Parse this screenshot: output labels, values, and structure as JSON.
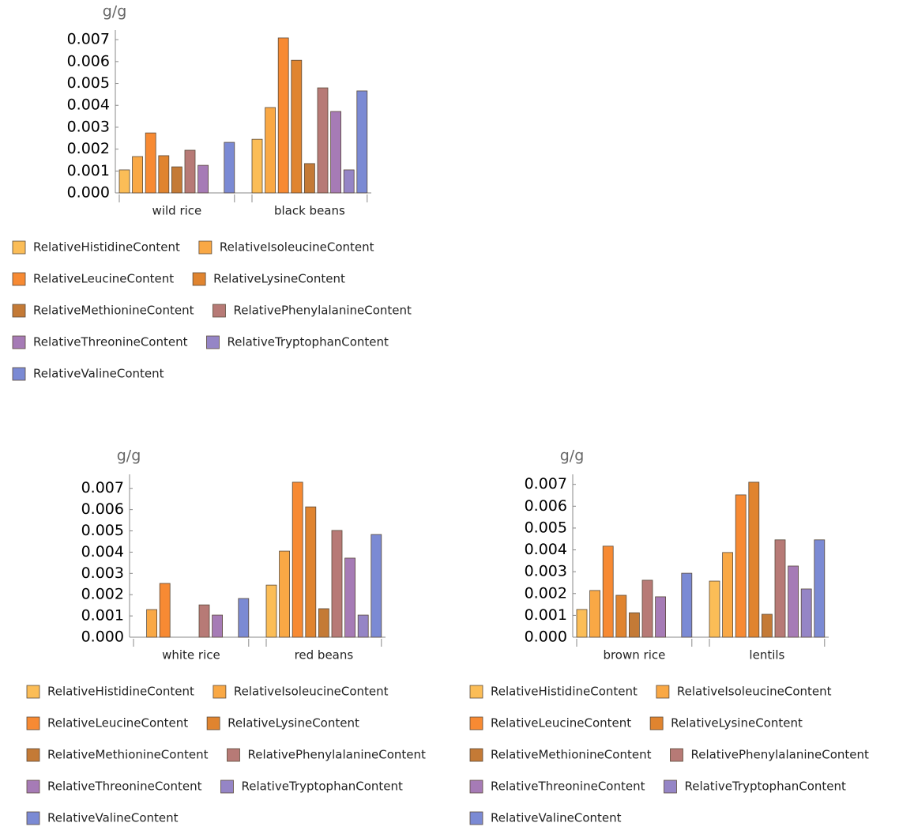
{
  "chart_data": [
    {
      "type": "bar",
      "ylabel": "g/g",
      "categories": [
        "wild rice",
        "black beans"
      ],
      "legend": "bottom",
      "ylim": [
        0,
        0.00744
      ],
      "yticks": [
        {
          "value": 0,
          "label": "0.000"
        },
        {
          "value": 0.001,
          "label": "0.001"
        },
        {
          "value": 0.002,
          "label": "0.002"
        },
        {
          "value": 0.003,
          "label": "0.003"
        },
        {
          "value": 0.004,
          "label": "0.004"
        },
        {
          "value": 0.005,
          "label": "0.005"
        },
        {
          "value": 0.006,
          "label": "0.006"
        },
        {
          "value": 0.007,
          "label": "0.007"
        }
      ],
      "series": [
        {
          "name": "RelativeHistidineContent",
          "color": "#fbbd57",
          "values": [
            0.00105,
            0.00245
          ]
        },
        {
          "name": "RelativeIsoleucineContent",
          "color": "#f9a845",
          "values": [
            0.00166,
            0.0039
          ]
        },
        {
          "name": "RelativeLeucineContent",
          "color": "#f78a33",
          "values": [
            0.00274,
            0.00708
          ]
        },
        {
          "name": "RelativeLysineContent",
          "color": "#e0842f",
          "values": [
            0.0017,
            0.00606
          ]
        },
        {
          "name": "RelativeMethionineContent",
          "color": "#c47a36",
          "values": [
            0.00119,
            0.00134
          ]
        },
        {
          "name": "RelativePhenylalanineContent",
          "color": "#b77a76",
          "values": [
            0.00195,
            0.0048
          ]
        },
        {
          "name": "RelativeThreonineContent",
          "color": "#a67bb6",
          "values": [
            0.00126,
            0.00372
          ]
        },
        {
          "name": "RelativeTryptophanContent",
          "color": "#9585c6",
          "values": [
            null,
            0.00105
          ]
        },
        {
          "name": "RelativeValineContent",
          "color": "#7b8ad4",
          "values": [
            0.00231,
            0.00466
          ]
        }
      ]
    },
    {
      "type": "bar",
      "ylabel": "g/g",
      "categories": [
        "white rice",
        "red beans"
      ],
      "legend": "bottom",
      "ylim": [
        0,
        0.00766
      ],
      "yticks": [
        {
          "value": 0,
          "label": "0.000"
        },
        {
          "value": 0.001,
          "label": "0.001"
        },
        {
          "value": 0.002,
          "label": "0.002"
        },
        {
          "value": 0.003,
          "label": "0.003"
        },
        {
          "value": 0.004,
          "label": "0.004"
        },
        {
          "value": 0.005,
          "label": "0.005"
        },
        {
          "value": 0.006,
          "label": "0.006"
        },
        {
          "value": 0.007,
          "label": "0.007"
        }
      ],
      "series": [
        {
          "name": "RelativeHistidineContent",
          "color": "#fbbd57",
          "values": [
            null,
            0.00245
          ]
        },
        {
          "name": "RelativeIsoleucineContent",
          "color": "#f9a845",
          "values": [
            0.0013,
            0.00405
          ]
        },
        {
          "name": "RelativeLeucineContent",
          "color": "#f78a33",
          "values": [
            0.00253,
            0.00729
          ]
        },
        {
          "name": "RelativeLysineContent",
          "color": "#e0842f",
          "values": [
            null,
            0.00613
          ]
        },
        {
          "name": "RelativeMethionineContent",
          "color": "#c47a36",
          "values": [
            null,
            0.00134
          ]
        },
        {
          "name": "RelativePhenylalanineContent",
          "color": "#b77a76",
          "values": [
            0.00152,
            0.00502
          ]
        },
        {
          "name": "RelativeThreonineContent",
          "color": "#a67bb6",
          "values": [
            0.00104,
            0.00372
          ]
        },
        {
          "name": "RelativeTryptophanContent",
          "color": "#9585c6",
          "values": [
            null,
            0.00104
          ]
        },
        {
          "name": "RelativeValineContent",
          "color": "#7b8ad4",
          "values": [
            0.00182,
            0.00483
          ]
        }
      ]
    },
    {
      "type": "bar",
      "ylabel": "g/g",
      "categories": [
        "brown rice",
        "lentils"
      ],
      "legend": "bottom",
      "ylim": [
        0,
        0.00746
      ],
      "yticks": [
        {
          "value": 0,
          "label": "0.000"
        },
        {
          "value": 0.001,
          "label": "0.001"
        },
        {
          "value": 0.002,
          "label": "0.002"
        },
        {
          "value": 0.003,
          "label": "0.003"
        },
        {
          "value": 0.004,
          "label": "0.004"
        },
        {
          "value": 0.005,
          "label": "0.005"
        },
        {
          "value": 0.006,
          "label": "0.006"
        },
        {
          "value": 0.007,
          "label": "0.007"
        }
      ],
      "series": [
        {
          "name": "RelativeHistidineContent",
          "color": "#fbbd57",
          "values": [
            0.00127,
            0.00257
          ]
        },
        {
          "name": "RelativeIsoleucineContent",
          "color": "#f9a845",
          "values": [
            0.00214,
            0.00388
          ]
        },
        {
          "name": "RelativeLeucineContent",
          "color": "#f78a33",
          "values": [
            0.00417,
            0.00652
          ]
        },
        {
          "name": "RelativeLysineContent",
          "color": "#e0842f",
          "values": [
            0.00192,
            0.0071
          ]
        },
        {
          "name": "RelativeMethionineContent",
          "color": "#c47a36",
          "values": [
            0.00112,
            0.00105
          ]
        },
        {
          "name": "RelativePhenylalanineContent",
          "color": "#b77a76",
          "values": [
            0.00261,
            0.00446
          ]
        },
        {
          "name": "RelativeThreonineContent",
          "color": "#a67bb6",
          "values": [
            0.00185,
            0.00326
          ]
        },
        {
          "name": "RelativeTryptophanContent",
          "color": "#9585c6",
          "values": [
            null,
            0.00221
          ]
        },
        {
          "name": "RelativeValineContent",
          "color": "#7b8ad4",
          "values": [
            0.00293,
            0.00446
          ]
        }
      ]
    }
  ]
}
